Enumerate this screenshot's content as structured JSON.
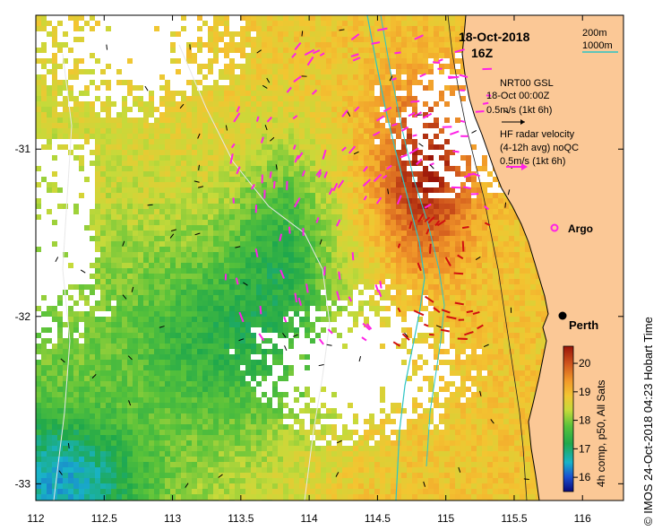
{
  "title": {
    "date": "18-Oct-2018",
    "time": "16Z"
  },
  "scale_legend": {
    "shelf_depth": "200m",
    "slope_depth": "1000m",
    "shelf_color": "#000000",
    "slope_color": "#2ec4c4"
  },
  "model_legend": {
    "line1": "NRT00 GSL",
    "line2": "18-Oct 00:00Z",
    "line3": "0.5m/s (1kt 6h)"
  },
  "radar_legend": {
    "line1": "HF radar velocity",
    "line2": "(4-12h avg) noQC",
    "line3": "0.5m/s (1kt 6h)",
    "arrow_color": "#ff22e6"
  },
  "argo_label": "Argo",
  "city_label": "Perth",
  "colorbar": {
    "ticks": [
      "20",
      "19",
      "18",
      "17",
      "16"
    ],
    "label": "4h comp, p50, All Sats",
    "min": 15.5,
    "max": 20.6
  },
  "credit": "© IMOS 24-Oct-2018 04:23 Hobart Time",
  "colors": {
    "land": "#fbc896",
    "no_data": "#ffffff"
  },
  "map_data": {
    "x_ticks": [
      "112",
      "112.5",
      "113",
      "113.5",
      "114",
      "114.5",
      "115",
      "115.5",
      "116"
    ],
    "y_ticks": [
      "-31",
      "-32",
      "-33"
    ],
    "lon_range": [
      112,
      116.3
    ],
    "lat_range": [
      -33.1,
      -30.2
    ]
  }
}
